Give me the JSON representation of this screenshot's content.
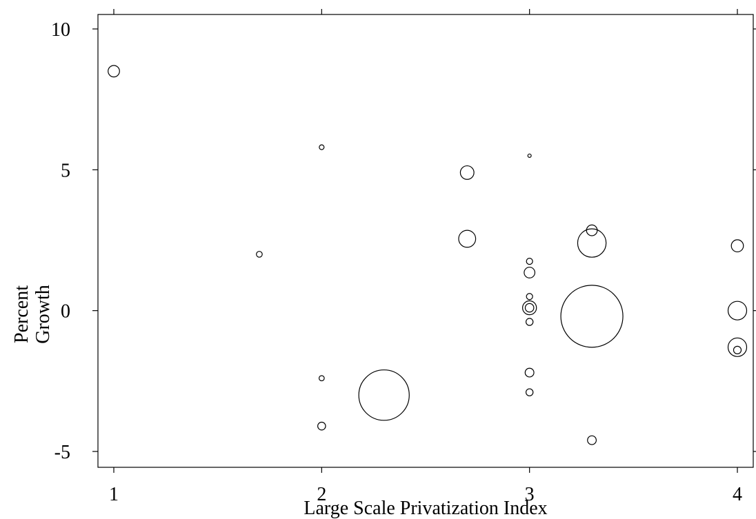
{
  "chart_data": {
    "type": "scatter",
    "title": "",
    "xlabel": "Large Scale Privatization Index",
    "ylabel_lines": [
      "Percent",
      "Growth"
    ],
    "xlim": [
      1,
      4
    ],
    "ylim": [
      -5,
      10
    ],
    "xticks": [
      1,
      2,
      3,
      4
    ],
    "yticks": [
      -5,
      0,
      5,
      10
    ],
    "xtick_labels": [
      "1",
      "2",
      "3",
      "4"
    ],
    "ytick_labels": [
      "-5",
      "0",
      "5",
      "10"
    ],
    "grid": false,
    "legend": "none",
    "marker": "hollow circle, size proportional to weight",
    "points": [
      {
        "x": 1.0,
        "y": 8.5,
        "size": 3.4
      },
      {
        "x": 1.7,
        "y": 2.0,
        "size": 0.9
      },
      {
        "x": 2.0,
        "y": 5.8,
        "size": 0.6
      },
      {
        "x": 2.0,
        "y": -2.4,
        "size": 0.7
      },
      {
        "x": 2.0,
        "y": -4.1,
        "size": 1.6
      },
      {
        "x": 2.3,
        "y": -3.0,
        "size": 66
      },
      {
        "x": 2.7,
        "y": 4.9,
        "size": 4.8
      },
      {
        "x": 2.7,
        "y": 2.55,
        "size": 7.5
      },
      {
        "x": 3.0,
        "y": 5.5,
        "size": 0.3
      },
      {
        "x": 3.0,
        "y": 1.75,
        "size": 1.0
      },
      {
        "x": 3.0,
        "y": 1.35,
        "size": 3.0
      },
      {
        "x": 3.0,
        "y": 0.5,
        "size": 1.0
      },
      {
        "x": 3.0,
        "y": 0.1,
        "size": 5.0
      },
      {
        "x": 3.0,
        "y": 0.1,
        "size": 1.9
      },
      {
        "x": 3.0,
        "y": -0.4,
        "size": 1.3
      },
      {
        "x": 3.0,
        "y": -2.2,
        "size": 2.0
      },
      {
        "x": 3.0,
        "y": -2.9,
        "size": 1.3
      },
      {
        "x": 3.3,
        "y": 2.85,
        "size": 3.0
      },
      {
        "x": 3.3,
        "y": 2.4,
        "size": 21
      },
      {
        "x": 3.3,
        "y": -0.2,
        "size": 100
      },
      {
        "x": 3.3,
        "y": -4.6,
        "size": 2.0
      },
      {
        "x": 4.0,
        "y": 2.3,
        "size": 3.8
      },
      {
        "x": 4.0,
        "y": 0.0,
        "size": 9.0
      },
      {
        "x": 4.0,
        "y": -1.3,
        "size": 9.0
      },
      {
        "x": 4.0,
        "y": -1.4,
        "size": 1.5
      }
    ]
  }
}
